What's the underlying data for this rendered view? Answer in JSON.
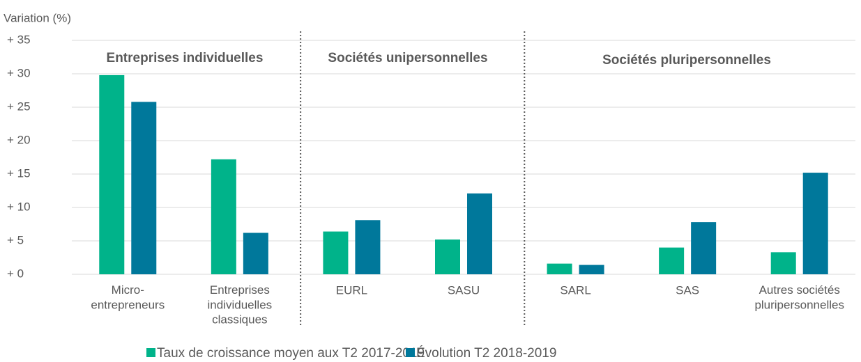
{
  "chart_data": {
    "type": "bar",
    "y_axis_label": "Variation (%)",
    "group_labels": [
      "Entreprises individuelles",
      "Sociétés unipersonnelles",
      "Sociétés pluripersonnelles"
    ],
    "categories": [
      "Micro-\nentrepreneurs",
      "Entreprises\nindividuelles\nclassiques",
      "EURL",
      "SASU",
      "SARL",
      "SAS",
      "Autres sociétés\npluripersonnelles"
    ],
    "series": [
      {
        "name": "Taux de croissance moyen aux T2 2017-2019",
        "color": "#00b38a",
        "values": [
          29.8,
          17.2,
          6.4,
          5.2,
          1.6,
          4.0,
          3.3
        ]
      },
      {
        "name": "Évolution T2 2018-2019",
        "color": "#00789b",
        "values": [
          25.8,
          6.2,
          8.1,
          12.1,
          1.4,
          7.8,
          15.2
        ]
      }
    ],
    "ylim": [
      0,
      35
    ],
    "yticks": [
      {
        "value": 0,
        "label": "+ 0"
      },
      {
        "value": 5,
        "label": "+ 5"
      },
      {
        "value": 10,
        "label": "+ 10"
      },
      {
        "value": 15,
        "label": "+ 15"
      },
      {
        "value": 20,
        "label": "+ 20"
      },
      {
        "value": 25,
        "label": "+ 25"
      },
      {
        "value": 30,
        "label": "+ 30"
      },
      {
        "value": 35,
        "label": "+ 35"
      }
    ],
    "grid": true
  }
}
